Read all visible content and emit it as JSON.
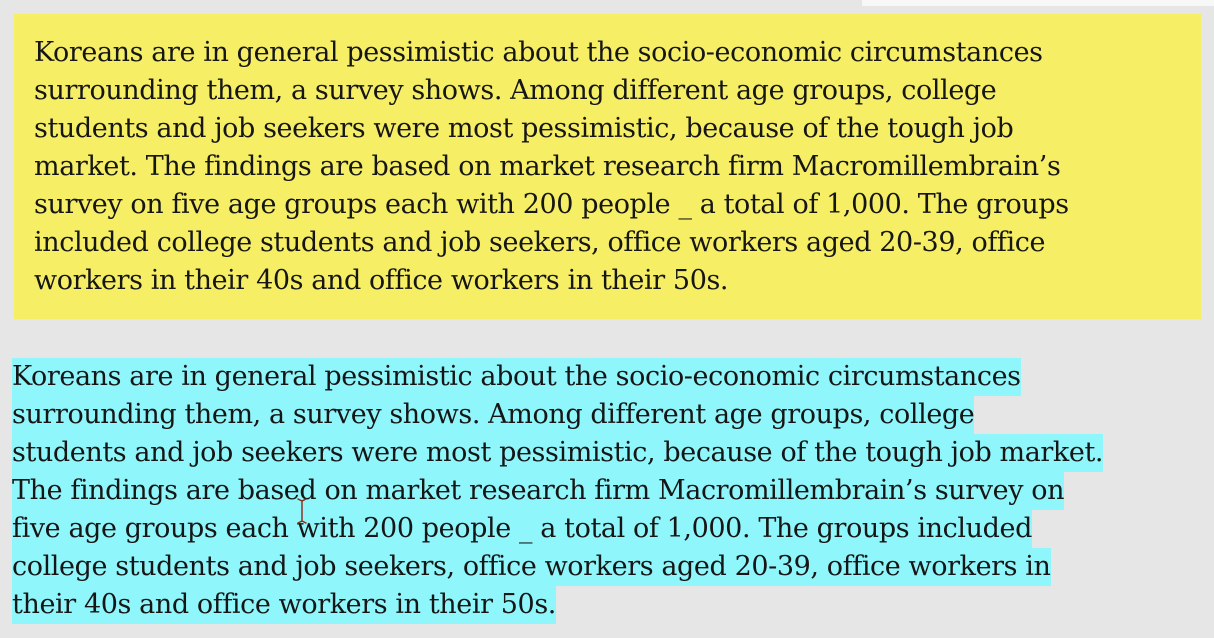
{
  "yellow_paragraph": {
    "lines": [
      "Koreans are in general pessimistic about the socio-economic circumstances",
      "surrounding them, a survey shows. Among different age groups, college",
      "students and job seekers were most pessimistic, because of the tough job",
      "market. The findings are based on market research firm Macromillembrain’s",
      "survey on five age groups each with 200 people _ a total of 1,000. The groups",
      "included college students and job seekers, office workers aged 20-39, office",
      "workers in their 40s and office workers in their 50s."
    ],
    "background": "#f6ef66"
  },
  "highlighted_paragraph": {
    "lines": [
      "Koreans are in general pessimistic about the socio-economic circumstances",
      "surrounding them, a survey shows. Among different age groups, college",
      "students and job seekers were most pessimistic, because of the tough job market.",
      "The findings are based on market research firm Macromillembrain’s survey on",
      "five age groups each with 200 people _ a total of 1,000. The groups included",
      "college students and job seekers, office workers aged 20-39, office workers in",
      "their 40s and office workers in their 50s."
    ],
    "highlight_color": "#8ff7fb"
  },
  "cursor": {
    "icon": "text-cursor-icon",
    "color": "#8b2a12"
  },
  "page_background": "#e6e6e6"
}
